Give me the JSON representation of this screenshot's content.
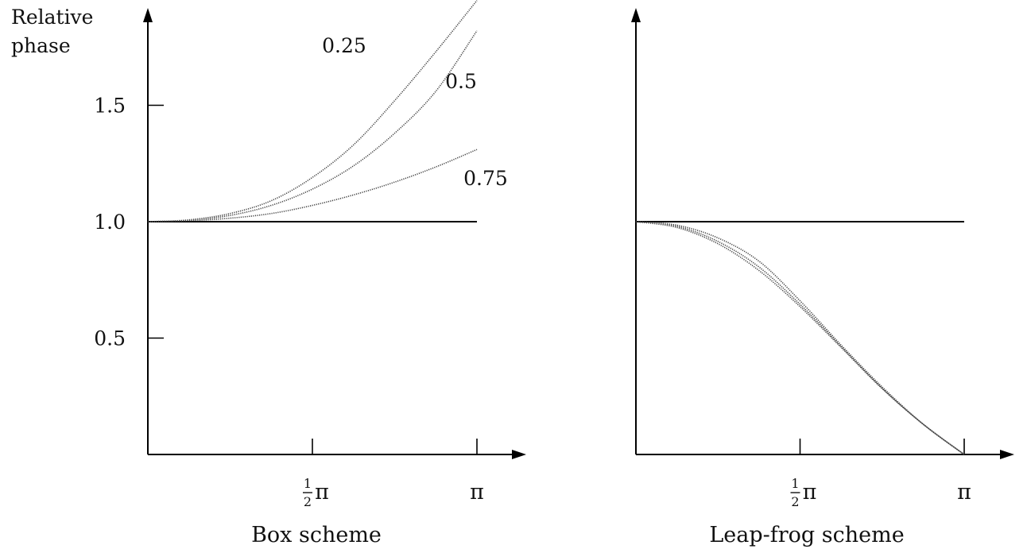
{
  "chart_data": [
    {
      "type": "line",
      "title": "Box scheme",
      "xlabel": "",
      "ylabel": "Relative phase",
      "x_ticks": [
        {
          "value": 1.5708,
          "label_num": "1",
          "label_den": "2",
          "label_sym": "π"
        },
        {
          "value": 3.1416,
          "label_num": "",
          "label_den": "",
          "label_sym": "π"
        }
      ],
      "y_ticks": [
        {
          "value": 0.5,
          "label": "0.5"
        },
        {
          "value": 1.0,
          "label": "1.0"
        },
        {
          "value": 1.5,
          "label": "1.5"
        }
      ],
      "xlim": [
        0,
        3.1416
      ],
      "ylim": [
        0,
        1.85
      ],
      "reference_line": 1.0,
      "series": [
        {
          "name": "0.25",
          "x": [
            0,
            0.3927,
            0.7854,
            1.1781,
            1.5708,
            1.9635,
            2.3562,
            2.7489,
            3.1416
          ],
          "y": [
            1.0,
            1.008,
            1.035,
            1.09,
            1.19,
            1.33,
            1.52,
            1.73,
            1.95
          ]
        },
        {
          "name": "0.5",
          "x": [
            0,
            0.3927,
            0.7854,
            1.1781,
            1.5708,
            1.9635,
            2.3562,
            2.7489,
            3.1416
          ],
          "y": [
            1.0,
            1.006,
            1.027,
            1.07,
            1.14,
            1.24,
            1.38,
            1.56,
            1.82
          ]
        },
        {
          "name": "0.75",
          "x": [
            0,
            0.3927,
            0.7854,
            1.1781,
            1.5708,
            1.9635,
            2.3562,
            2.7489,
            3.1416
          ],
          "y": [
            1.0,
            1.004,
            1.015,
            1.035,
            1.07,
            1.115,
            1.17,
            1.235,
            1.31
          ]
        }
      ],
      "series_label_positions": [
        "upper",
        "middle",
        "lower"
      ]
    },
    {
      "type": "line",
      "title": "Leap-frog scheme",
      "xlabel": "",
      "ylabel": "",
      "x_ticks": [
        {
          "value": 1.5708,
          "label_num": "1",
          "label_den": "2",
          "label_sym": "π"
        },
        {
          "value": 3.1416,
          "label_num": "",
          "label_den": "",
          "label_sym": "π"
        }
      ],
      "y_ticks": [],
      "xlim": [
        0,
        3.1416
      ],
      "ylim": [
        0,
        1.85
      ],
      "reference_line": 1.0,
      "series": [
        {
          "x": [
            0,
            0.3927,
            0.7854,
            1.1781,
            1.5708,
            1.9635,
            2.3562,
            2.7489,
            3.1416
          ],
          "y": [
            1.0,
            0.985,
            0.93,
            0.83,
            0.66,
            0.47,
            0.29,
            0.13,
            0.0
          ]
        },
        {
          "x": [
            0,
            0.3927,
            0.7854,
            1.1781,
            1.5708,
            1.9635,
            2.3562,
            2.7489,
            3.1416
          ],
          "y": [
            1.0,
            0.98,
            0.915,
            0.805,
            0.645,
            0.465,
            0.285,
            0.13,
            0.0
          ]
        },
        {
          "x": [
            0,
            0.3927,
            0.7854,
            1.1781,
            1.5708,
            1.9635,
            2.3562,
            2.7489,
            3.1416
          ],
          "y": [
            1.0,
            0.975,
            0.905,
            0.79,
            0.635,
            0.46,
            0.283,
            0.13,
            0.0
          ]
        }
      ]
    }
  ]
}
